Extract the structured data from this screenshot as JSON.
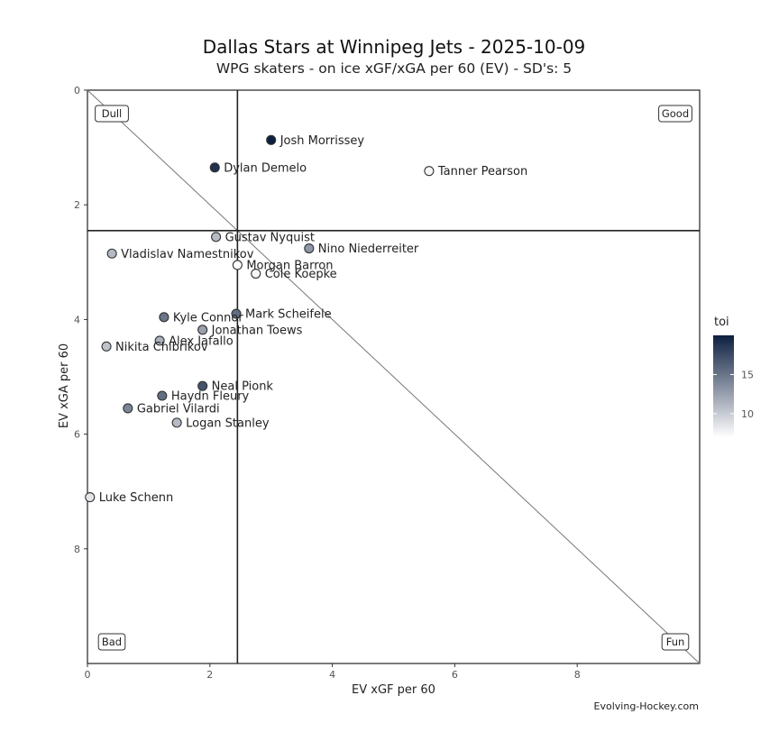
{
  "title": "Dallas Stars at Winnipeg Jets - 2025-10-09",
  "subtitle": "WPG skaters - on ice xGF/xGA per 60 (EV) - SD's: 5",
  "credit": "Evolving-Hockey.com",
  "chart_data": {
    "type": "scatter",
    "xlabel": "EV xGF per 60",
    "ylabel": "EV xGA per 60",
    "xlim": [
      0,
      10
    ],
    "ylim": [
      0,
      10
    ],
    "y_reversed": true,
    "x_ticks": [
      "0",
      "2",
      "4",
      "6",
      "8"
    ],
    "y_ticks": [
      "0",
      "2",
      "4",
      "6",
      "8"
    ],
    "reference_lines": {
      "vline_x": 2.45,
      "hline_y": 2.45,
      "diagonal": "y = x"
    },
    "quadrant_labels": {
      "top_left": "Dull",
      "top_right": "Good",
      "bottom_left": "Bad",
      "bottom_right": "Fun"
    },
    "color_scale": {
      "title": "toi",
      "ticks": [
        10,
        15
      ],
      "min": 7,
      "max": 20,
      "low_color": "#ffffff",
      "high_color": "#0d1f40"
    },
    "points": [
      {
        "name": "Josh Morrissey",
        "x": 3.0,
        "y": 0.87,
        "toi": 20
      },
      {
        "name": "Dylan Demelo",
        "x": 2.08,
        "y": 1.35,
        "toi": 19
      },
      {
        "name": "Tanner Pearson",
        "x": 5.58,
        "y": 1.41,
        "toi": 7.5
      },
      {
        "name": "Gustav Nyquist",
        "x": 2.1,
        "y": 2.56,
        "toi": 11
      },
      {
        "name": "Nino Niederreiter",
        "x": 3.62,
        "y": 2.76,
        "toi": 13
      },
      {
        "name": "Vladislav Namestnikov",
        "x": 0.4,
        "y": 2.85,
        "toi": 11
      },
      {
        "name": "Morgan Barron",
        "x": 2.45,
        "y": 3.05,
        "toi": 7
      },
      {
        "name": "Cole Koepke",
        "x": 2.75,
        "y": 3.2,
        "toi": 7.5
      },
      {
        "name": "Kyle Connor",
        "x": 1.25,
        "y": 3.96,
        "toi": 15
      },
      {
        "name": "Mark Scheifele",
        "x": 2.43,
        "y": 3.9,
        "toi": 15.5
      },
      {
        "name": "Jonathan Toews",
        "x": 1.88,
        "y": 4.18,
        "toi": 12.5
      },
      {
        "name": "Alex Iafallo",
        "x": 1.18,
        "y": 4.37,
        "toi": 11.5
      },
      {
        "name": "Nikita Chibrikov",
        "x": 0.31,
        "y": 4.47,
        "toi": 10.5
      },
      {
        "name": "Neal Pionk",
        "x": 1.88,
        "y": 5.16,
        "toi": 17
      },
      {
        "name": "Haydn Fleury",
        "x": 1.22,
        "y": 5.33,
        "toi": 15.5
      },
      {
        "name": "Gabriel Vilardi",
        "x": 0.66,
        "y": 5.55,
        "toi": 14
      },
      {
        "name": "Logan Stanley",
        "x": 1.46,
        "y": 5.8,
        "toi": 11
      },
      {
        "name": "Luke Schenn",
        "x": 0.04,
        "y": 7.1,
        "toi": 8.5
      }
    ]
  }
}
